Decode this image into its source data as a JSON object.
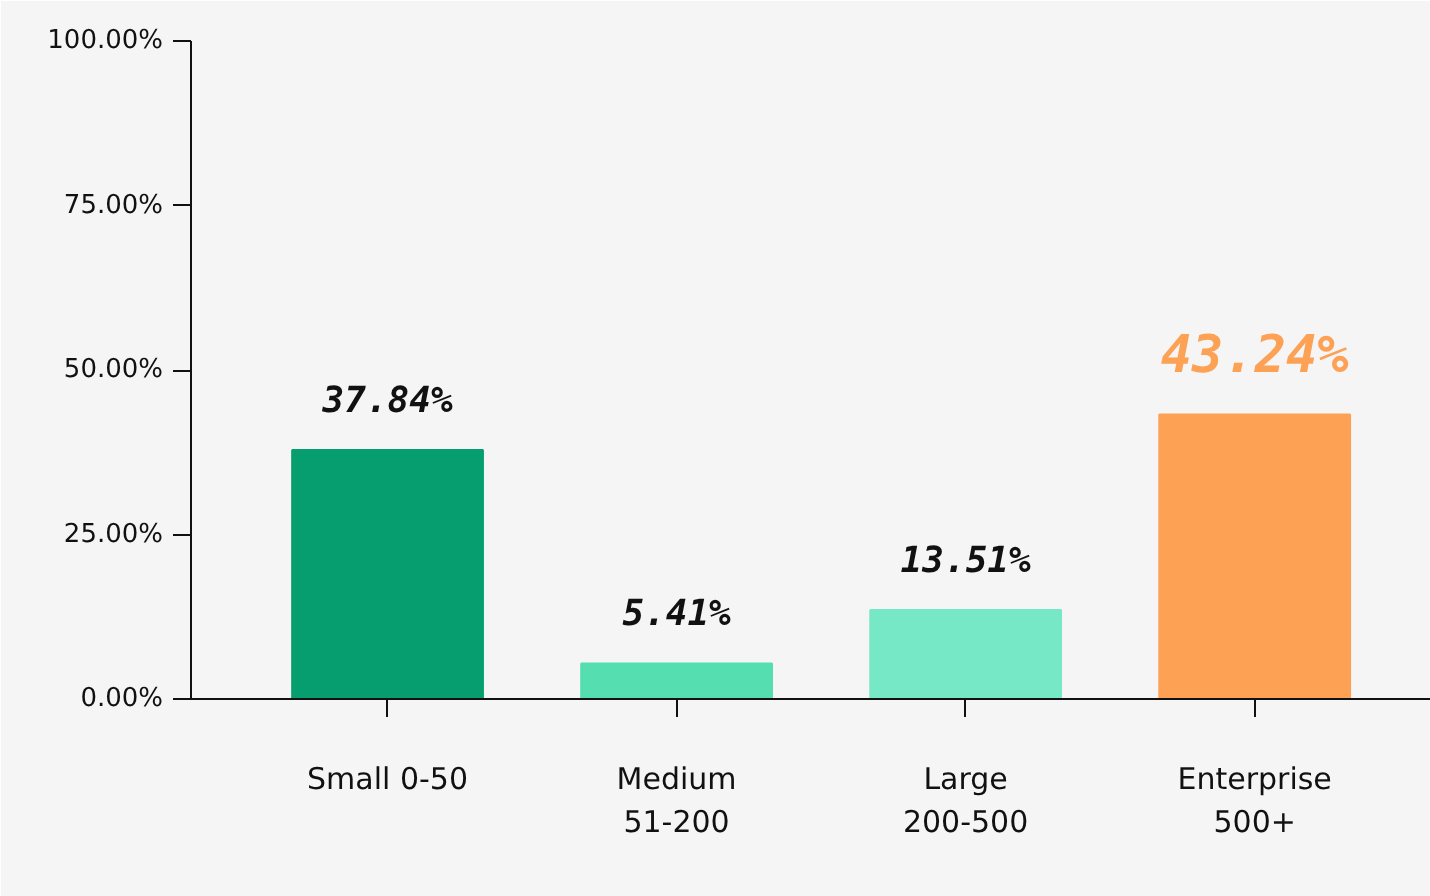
{
  "chart_data": {
    "type": "bar",
    "categories": [
      "Small 0-50",
      "Medium\n51-200",
      "Large\n200-500",
      "Enterprise\n500+"
    ],
    "values": [
      37.84,
      5.41,
      13.51,
      43.24
    ],
    "colors": [
      "#069e6e",
      "#55deb0",
      "#77e8c6",
      "#fda155"
    ],
    "value_labels": [
      "37.84%",
      "5.41%",
      "13.51%",
      "43.24%"
    ],
    "ylim": [
      0,
      100
    ],
    "yticks": [
      {
        "value": 0,
        "label": "0.00%"
      },
      {
        "value": 25,
        "label": "25.00%"
      },
      {
        "value": 50,
        "label": "50.00%"
      },
      {
        "value": 75,
        "label": "75.00%"
      },
      {
        "value": 100,
        "label": "100.00%"
      }
    ],
    "grid": false
  }
}
